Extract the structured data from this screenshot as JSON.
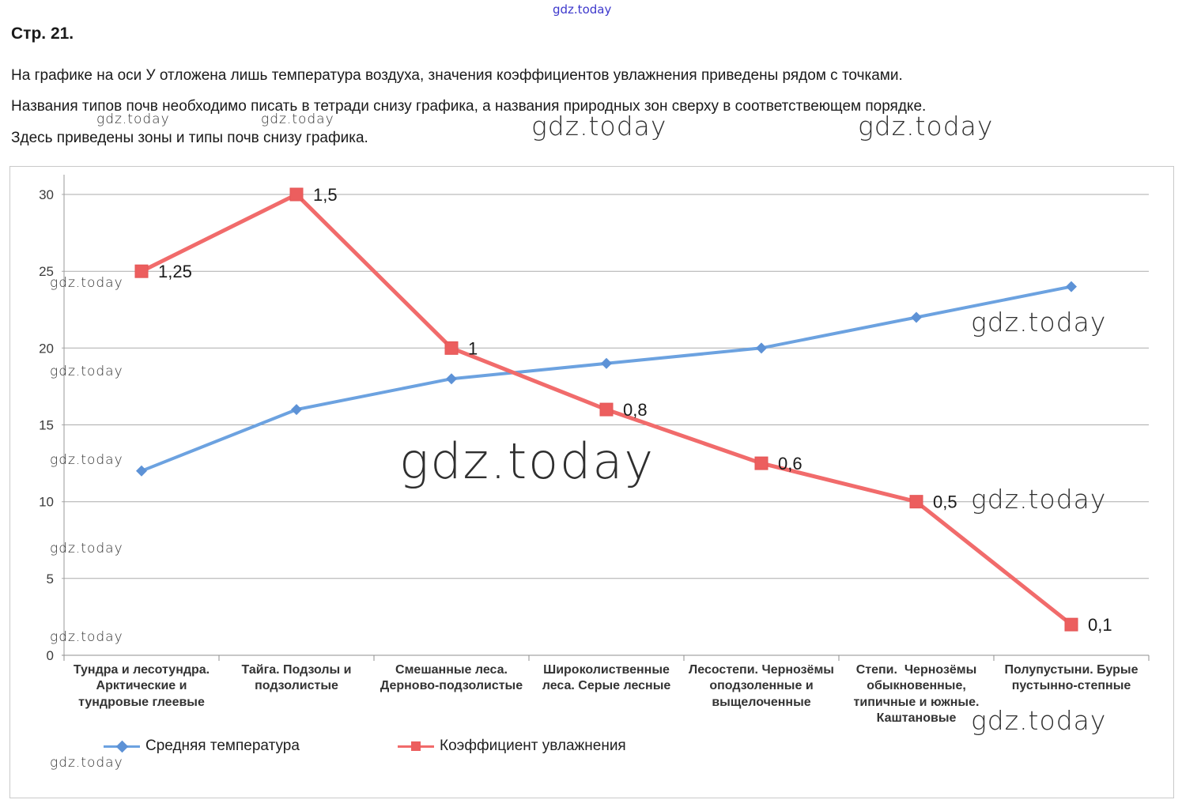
{
  "page": {
    "title": "Стр. 21.",
    "paragraphs": [
      "На графике на оси У отложена лишь температура воздуха, значения коэффициентов увлажнения приведены рядом с точками.",
      "Названия типов почв необходимо писать в тетради снизу графика, а названия природных зон сверху в соответствеющем порядке.",
      "Здесь приведены зоны и типы почв снизу графика."
    ]
  },
  "watermark": {
    "text": "gdz.today",
    "top_color": "#3d38cc",
    "body_color": "#2f2f2f"
  },
  "chart_data": {
    "type": "line",
    "categories": [
      "Тундра и лесотундра. Арктические и тундровые глеевые",
      "Тайга. Подзолы и подзолистые",
      "Смешанные леса. Дерново-подзолистые",
      "Широколиственные леса. Серые лесные",
      "Лесостепи. Чернозёмы оподзоленные и выщелоченные",
      "Степи.  Чернозёмы обыкновенные, типичные и южные. Каштановые",
      "Полупустыни. Бурые пустынно-степные"
    ],
    "series": [
      {
        "name": "Средняя температура",
        "marker": "diamond",
        "color": "#6ca2e0",
        "marker_color": "#5d92d6",
        "values": [
          12,
          16,
          18,
          19,
          20,
          22,
          24
        ]
      },
      {
        "name": "Коэффициент увлажнения",
        "marker": "square",
        "color": "#f16b6b",
        "marker_color": "#ec5e5e",
        "values": [
          25,
          30,
          20,
          16,
          12.5,
          10,
          2
        ],
        "point_labels": [
          "1,25",
          "1,5",
          "1",
          "0,8",
          "0,6",
          "0,5",
          "0,1"
        ],
        "coefficient_values": [
          1.25,
          1.5,
          1,
          0.8,
          0.6,
          0.5,
          0.1
        ]
      }
    ],
    "title": "",
    "xlabel": "",
    "ylabel": "",
    "ylim": [
      0,
      30
    ],
    "yticks": [
      0,
      5,
      10,
      15,
      20,
      25,
      30
    ],
    "grid": true,
    "legend_position": "bottom"
  }
}
